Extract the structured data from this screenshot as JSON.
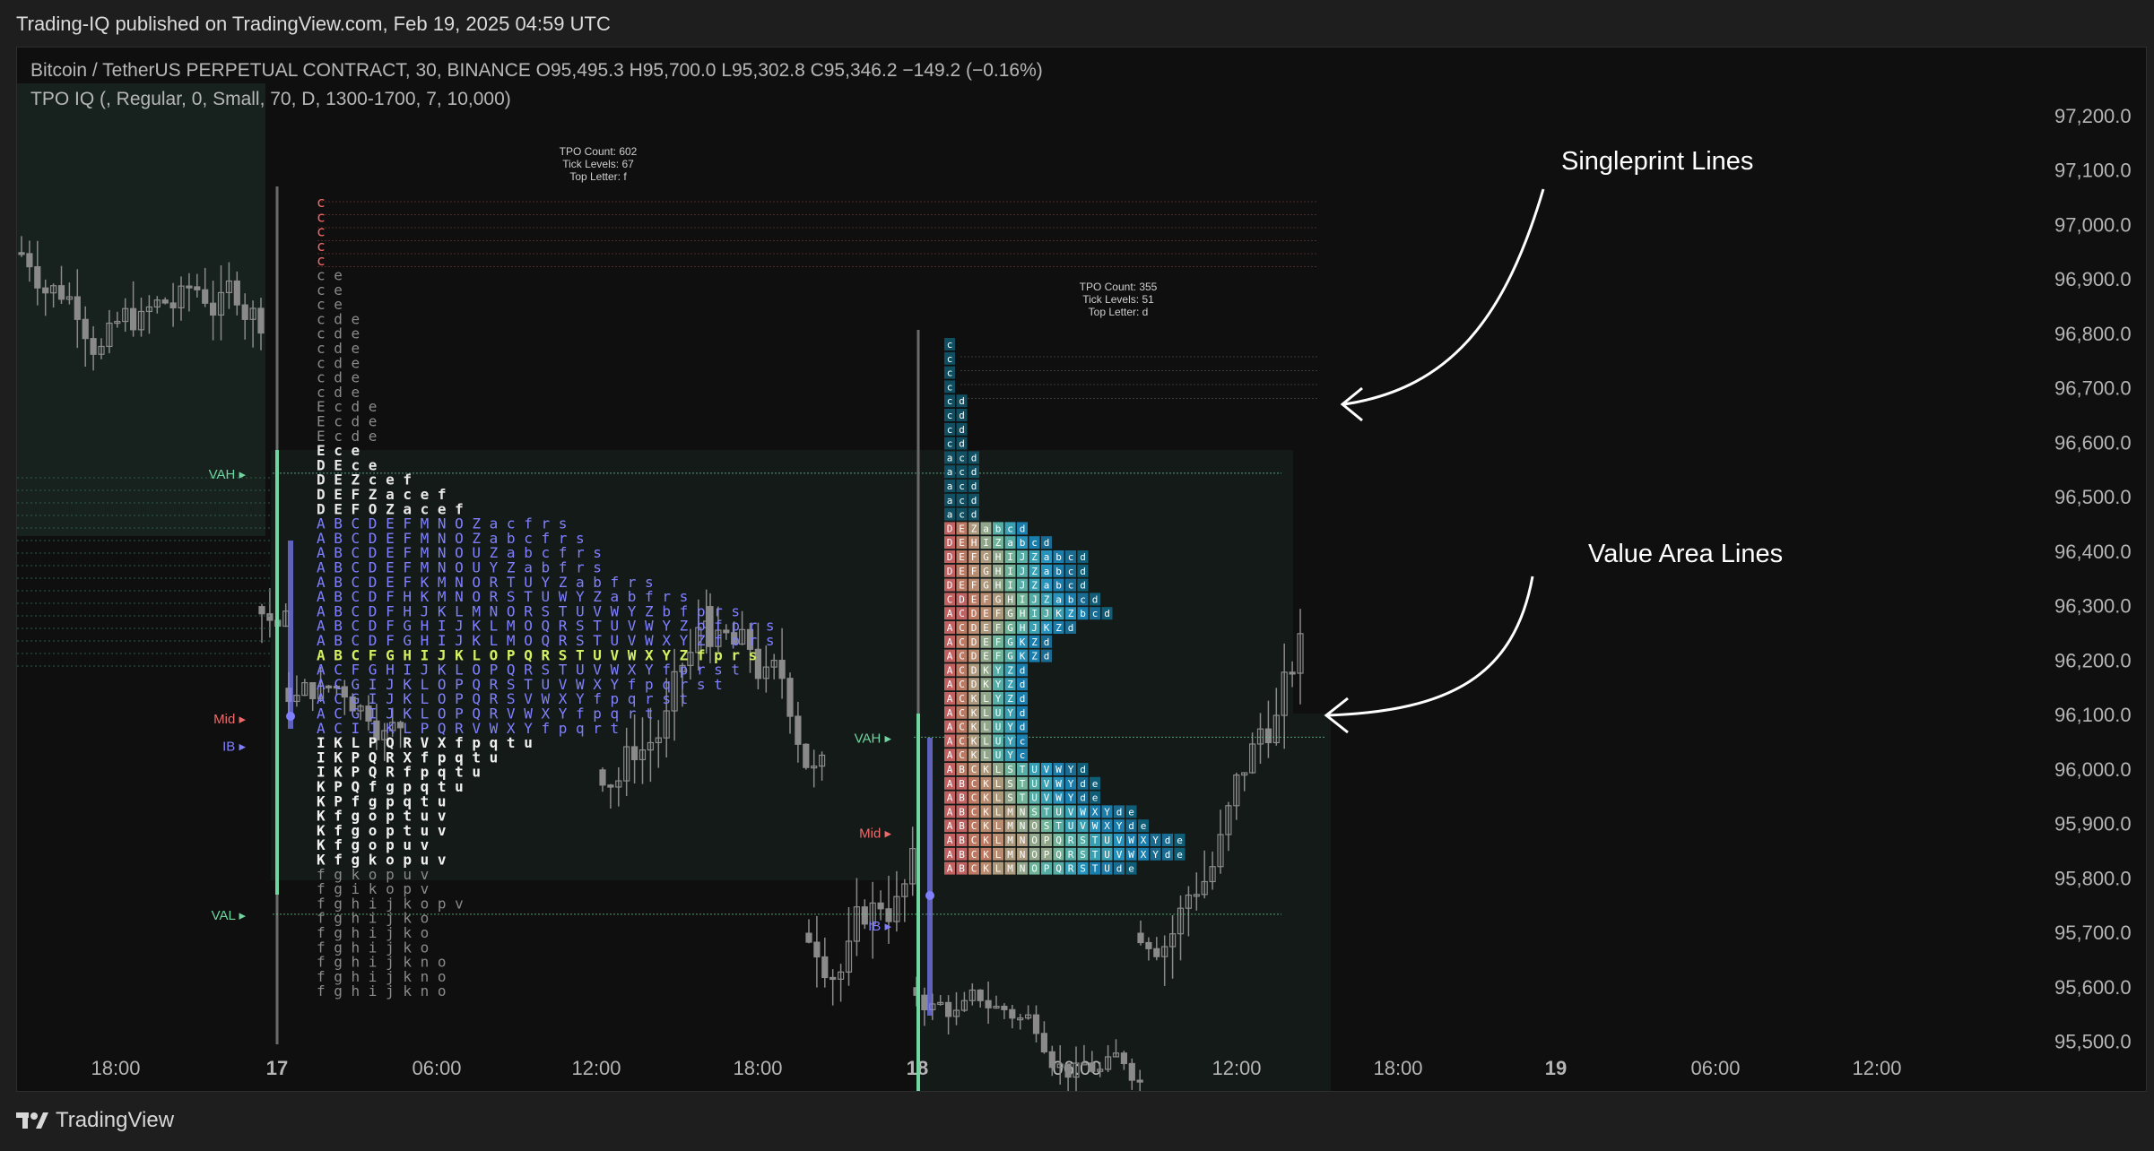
{
  "header": {
    "publisher": "Trading-IQ published on TradingView.com, Feb 19, 2025 04:59 UTC"
  },
  "legend": {
    "symbol_line": "Bitcoin / TetherUS PERPETUAL CONTRACT, 30, BINANCE  O95,495.3  H95,700.0  L95,302.8  C95,346.2  −149.2 (−0.16%)",
    "indicator_line": "TPO IQ (, Regular, 0, Small, 70, D, 1300-1700, 7, 10,000)"
  },
  "annotations": {
    "singleprint": "Singleprint Lines",
    "value_area": "Value Area Lines"
  },
  "footer": {
    "brand": "TradingView"
  },
  "colors": {
    "background": "#0f0f0f",
    "up_candle": "#8a8a8a",
    "va_green": "#6fd6a0",
    "mid_red": "#f06a6a",
    "ib_blue": "#8080ff",
    "poc_yellow": "#d4f062"
  },
  "chart_data": {
    "type": "candlestick",
    "price_axis": {
      "ticks": [
        "97,200.0",
        "97,100.0",
        "97,000.0",
        "96,900.0",
        "96,800.0",
        "96,700.0",
        "96,600.0",
        "96,500.0",
        "96,400.0",
        "96,300.0",
        "96,200.0",
        "96,100.0",
        "96,000.0",
        "95,900.0",
        "95,800.0",
        "95,700.0",
        "95,600.0",
        "95,500.0"
      ],
      "range": [
        95460,
        97240
      ]
    },
    "time_axis": {
      "ticks": [
        "18:00",
        "17",
        "06:00",
        "12:00",
        "18:00",
        "18",
        "06:00",
        "12:00",
        "18:00",
        "19",
        "06:00",
        "12:00"
      ]
    },
    "profiles": [
      {
        "info": [
          "TPO Count: 602",
          "Tick Levels: 67",
          "Top Letter:  f"
        ],
        "labels": {
          "vah": "VAH",
          "mid": "Mid",
          "ib": "IB",
          "val": "VAL"
        },
        "vah": 96545,
        "mid": 96095,
        "ib": 96045,
        "val": 95735,
        "rows": [
          "c",
          "c",
          "c",
          "c",
          "c",
          "c e",
          "c e",
          "c e",
          "c d e",
          "c d e",
          "c d e",
          "c d e",
          "c d e",
          "c d e",
          "E c d e",
          "E c d e",
          "E c d e",
          "E c e",
          "D E c e",
          "D E Z c e f",
          "D E F Z a c e f",
          "D E F O Z a c e f",
          "A B C D E F M N O Z a c f r s",
          "A B C D E F M N O Z a b c f r s",
          "A B C D E F M N O U Z a b c f r s",
          "A B C D E F M N O U Y Z a b f r s",
          "A B C D E F K M N O R T U Y Z a b f r s",
          "A B C D F H K M N O R S T U W Y Z a b f r s",
          "A B C D F H J K L M N O R S T U V W Y Z b f p r s",
          "A B C D F G H I J K L M O Q R S T U V W Y Z b f p r s",
          "A B C D F G H I J K L M O Q R S T U V W X Y Z f p r s",
          "A B C F G H I J K L O P Q R S T U V W X Y Z f p r s",
          "A C F G H I J K L O P Q R S T U V W X Y f p r s t",
          "A C G I J K L O P Q R S T U V W X Y f p q r s t",
          "A C G I J K L O P Q R S V W X Y f p q r s t",
          "A C G I J K L O P Q R V W X Y f p q r t",
          "A C I J K L P Q R V W X Y f p q r t",
          "I K L P Q R V X f p q t u",
          "I K P Q R X f p q t u",
          "I K P Q R f p q t u",
          "K P Q f g p q t u",
          "K P f g p q t u",
          "K f g o p t u v",
          "K f g o p t u v",
          "K f g o p u v",
          "K f g k o p u v",
          "f g k o p u v",
          "f g i k o p v",
          "f g h i j k o p v",
          "f g h i j k o",
          "f g h i j k o",
          "f g h i j k o",
          "f g h i j k n o",
          "f g h i j k n o",
          "f g h i j k n o"
        ]
      },
      {
        "info": [
          "TPO Count: 355",
          "Tick Levels: 51",
          "Top Letter:  d"
        ],
        "labels": {
          "vah": "VAH",
          "mid": "Mid",
          "ib": "IB"
        },
        "vah": 96060,
        "mid": 95885,
        "ib": 95715,
        "rows": [
          "c",
          "c",
          "c",
          "c",
          "c d",
          "c d",
          "c d",
          "c d",
          "a c d",
          "a c d",
          "a c d",
          "a c d",
          "a c d",
          "D E Z a b c d",
          "D E H I Z a b c d",
          "D E F G H I J Z a b c d",
          "D E F G H I J Z a b c d",
          "D E F G H I J Z a b c d",
          "C D E F G H I J Z a b c d",
          "A C D E F G H I J K Z b c d",
          "A C D E F G H J K Z d",
          "A C D E F G K Z d",
          "A C D E F G K Z d",
          "A C D K Y Z d",
          "A C D K Y Z d",
          "A C K L Y Z d",
          "A C K L U Y d",
          "A C K L U Y d",
          "A C K L U Y c",
          "A C K L U Y c",
          "A B C K L S T U V W Y d",
          "A B C K L S T U V W Y d e",
          "A B C K L S T U V W Y d e",
          "A B C K L M N S T U V W X Y d e",
          "A B C K L M N O S T U V W X Y d e",
          "A B C K L M N O P Q R S T U V W X Y d e",
          "A B C K L M N O P Q R S T U V W X Y d e",
          "A B C K L M N O P Q R S T U d e"
        ]
      }
    ]
  }
}
